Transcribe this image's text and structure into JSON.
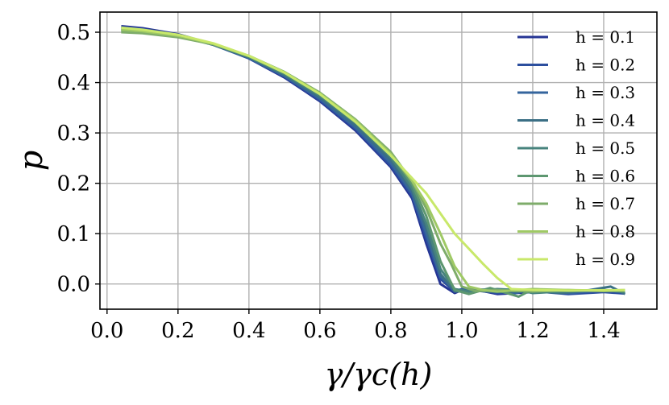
{
  "chart_data": {
    "type": "line",
    "xlabel": "γ/γc(h)",
    "ylabel": "p",
    "xlim": [
      -0.02,
      1.55
    ],
    "ylim": [
      -0.05,
      0.54
    ],
    "x_ticks": [
      "0.0",
      "0.2",
      "0.4",
      "0.6",
      "0.8",
      "1.0",
      "1.2",
      "1.4"
    ],
    "x_tick_values": [
      0.0,
      0.2,
      0.4,
      0.6,
      0.8,
      1.0,
      1.2,
      1.4
    ],
    "y_ticks": [
      "0.0",
      "0.1",
      "0.2",
      "0.3",
      "0.4",
      "0.5"
    ],
    "y_tick_values": [
      0.0,
      0.1,
      0.2,
      0.3,
      0.4,
      0.5
    ],
    "grid": true,
    "legend_position": "top-right",
    "series": [
      {
        "name": "h = 0.1",
        "color": "#253494",
        "points": [
          [
            0.04,
            0.512
          ],
          [
            0.1,
            0.508
          ],
          [
            0.2,
            0.496
          ],
          [
            0.3,
            0.476
          ],
          [
            0.4,
            0.448
          ],
          [
            0.5,
            0.41
          ],
          [
            0.6,
            0.363
          ],
          [
            0.7,
            0.305
          ],
          [
            0.8,
            0.232
          ],
          [
            0.86,
            0.17
          ],
          [
            0.9,
            0.08
          ],
          [
            0.94,
            0.0
          ],
          [
            0.98,
            -0.018
          ],
          [
            1.0,
            -0.012
          ],
          [
            1.06,
            -0.014
          ],
          [
            1.1,
            -0.02
          ],
          [
            1.2,
            -0.016
          ],
          [
            1.3,
            -0.017
          ],
          [
            1.4,
            -0.015
          ],
          [
            1.46,
            -0.018
          ]
        ]
      },
      {
        "name": "h = 0.2",
        "color": "#2c4f9e",
        "points": [
          [
            0.04,
            0.51
          ],
          [
            0.1,
            0.506
          ],
          [
            0.2,
            0.495
          ],
          [
            0.3,
            0.475
          ],
          [
            0.4,
            0.448
          ],
          [
            0.5,
            0.412
          ],
          [
            0.6,
            0.365
          ],
          [
            0.7,
            0.308
          ],
          [
            0.8,
            0.235
          ],
          [
            0.86,
            0.175
          ],
          [
            0.9,
            0.09
          ],
          [
            0.94,
            0.01
          ],
          [
            0.98,
            -0.015
          ],
          [
            1.0,
            -0.01
          ],
          [
            1.08,
            -0.016
          ],
          [
            1.1,
            -0.018
          ],
          [
            1.2,
            -0.014
          ],
          [
            1.3,
            -0.02
          ],
          [
            1.4,
            -0.016
          ],
          [
            1.46,
            -0.019
          ]
        ]
      },
      {
        "name": "h = 0.3",
        "color": "#35659d",
        "points": [
          [
            0.04,
            0.508
          ],
          [
            0.1,
            0.505
          ],
          [
            0.2,
            0.494
          ],
          [
            0.3,
            0.475
          ],
          [
            0.4,
            0.449
          ],
          [
            0.5,
            0.413
          ],
          [
            0.6,
            0.368
          ],
          [
            0.7,
            0.311
          ],
          [
            0.8,
            0.24
          ],
          [
            0.86,
            0.18
          ],
          [
            0.9,
            0.1
          ],
          [
            0.94,
            0.015
          ],
          [
            0.98,
            -0.012
          ],
          [
            1.02,
            -0.01
          ],
          [
            1.1,
            -0.012
          ],
          [
            1.14,
            -0.02
          ],
          [
            1.2,
            -0.01
          ],
          [
            1.3,
            -0.018
          ],
          [
            1.4,
            -0.012
          ],
          [
            1.46,
            -0.016
          ]
        ]
      },
      {
        "name": "h = 0.4",
        "color": "#3b6f85",
        "points": [
          [
            0.04,
            0.506
          ],
          [
            0.1,
            0.503
          ],
          [
            0.2,
            0.493
          ],
          [
            0.3,
            0.475
          ],
          [
            0.4,
            0.45
          ],
          [
            0.5,
            0.415
          ],
          [
            0.6,
            0.371
          ],
          [
            0.7,
            0.315
          ],
          [
            0.8,
            0.246
          ],
          [
            0.86,
            0.185
          ],
          [
            0.9,
            0.11
          ],
          [
            0.94,
            0.02
          ],
          [
            0.98,
            -0.015
          ],
          [
            1.04,
            -0.013
          ],
          [
            1.1,
            -0.016
          ],
          [
            1.2,
            -0.014
          ],
          [
            1.28,
            -0.018
          ],
          [
            1.36,
            -0.012
          ],
          [
            1.42,
            -0.005
          ],
          [
            1.46,
            -0.02
          ]
        ]
      },
      {
        "name": "h = 0.5",
        "color": "#47837d",
        "points": [
          [
            0.04,
            0.504
          ],
          [
            0.1,
            0.502
          ],
          [
            0.2,
            0.492
          ],
          [
            0.3,
            0.476
          ],
          [
            0.4,
            0.451
          ],
          [
            0.5,
            0.417
          ],
          [
            0.6,
            0.374
          ],
          [
            0.7,
            0.32
          ],
          [
            0.8,
            0.252
          ],
          [
            0.86,
            0.19
          ],
          [
            0.9,
            0.12
          ],
          [
            0.94,
            0.03
          ],
          [
            0.98,
            -0.01
          ],
          [
            1.02,
            -0.015
          ],
          [
            1.1,
            -0.01
          ],
          [
            1.16,
            -0.012
          ],
          [
            1.2,
            -0.018
          ],
          [
            1.3,
            -0.014
          ],
          [
            1.4,
            -0.012
          ],
          [
            1.46,
            -0.016
          ]
        ]
      },
      {
        "name": "h = 0.6",
        "color": "#5d9770",
        "points": [
          [
            0.04,
            0.502
          ],
          [
            0.1,
            0.5
          ],
          [
            0.2,
            0.491
          ],
          [
            0.3,
            0.476
          ],
          [
            0.4,
            0.452
          ],
          [
            0.5,
            0.419
          ],
          [
            0.6,
            0.377
          ],
          [
            0.7,
            0.324
          ],
          [
            0.8,
            0.258
          ],
          [
            0.86,
            0.198
          ],
          [
            0.9,
            0.135
          ],
          [
            0.94,
            0.045
          ],
          [
            0.98,
            -0.012
          ],
          [
            1.02,
            -0.02
          ],
          [
            1.08,
            -0.008
          ],
          [
            1.16,
            -0.025
          ],
          [
            1.2,
            -0.01
          ],
          [
            1.3,
            -0.014
          ],
          [
            1.4,
            -0.012
          ],
          [
            1.46,
            -0.014
          ]
        ]
      },
      {
        "name": "h = 0.7",
        "color": "#7eac6a",
        "points": [
          [
            0.04,
            0.5
          ],
          [
            0.1,
            0.498
          ],
          [
            0.2,
            0.49
          ],
          [
            0.3,
            0.476
          ],
          [
            0.4,
            0.453
          ],
          [
            0.5,
            0.421
          ],
          [
            0.6,
            0.38
          ],
          [
            0.7,
            0.327
          ],
          [
            0.8,
            0.262
          ],
          [
            0.86,
            0.204
          ],
          [
            0.9,
            0.15
          ],
          [
            0.94,
            0.08
          ],
          [
            0.97,
            0.04
          ],
          [
            1.0,
            -0.005
          ],
          [
            1.04,
            -0.014
          ],
          [
            1.1,
            -0.012
          ],
          [
            1.2,
            -0.015
          ],
          [
            1.3,
            -0.012
          ],
          [
            1.4,
            -0.014
          ],
          [
            1.46,
            -0.013
          ]
        ]
      },
      {
        "name": "h = 0.8",
        "color": "#9fc965",
        "points": [
          [
            0.04,
            0.505
          ],
          [
            0.1,
            0.502
          ],
          [
            0.2,
            0.493
          ],
          [
            0.3,
            0.477
          ],
          [
            0.4,
            0.453
          ],
          [
            0.5,
            0.42
          ],
          [
            0.6,
            0.378
          ],
          [
            0.7,
            0.325
          ],
          [
            0.8,
            0.258
          ],
          [
            0.86,
            0.205
          ],
          [
            0.9,
            0.16
          ],
          [
            0.94,
            0.1
          ],
          [
            0.98,
            0.035
          ],
          [
            1.02,
            -0.005
          ],
          [
            1.06,
            -0.012
          ],
          [
            1.1,
            -0.015
          ],
          [
            1.2,
            -0.01
          ],
          [
            1.3,
            -0.012
          ],
          [
            1.4,
            -0.013
          ],
          [
            1.46,
            -0.012
          ]
        ]
      },
      {
        "name": "h = 0.9",
        "color": "#c8e86a",
        "points": [
          [
            0.04,
            0.509
          ],
          [
            0.1,
            0.505
          ],
          [
            0.2,
            0.495
          ],
          [
            0.3,
            0.478
          ],
          [
            0.4,
            0.453
          ],
          [
            0.5,
            0.42
          ],
          [
            0.6,
            0.377
          ],
          [
            0.7,
            0.322
          ],
          [
            0.8,
            0.255
          ],
          [
            0.86,
            0.21
          ],
          [
            0.9,
            0.18
          ],
          [
            0.94,
            0.14
          ],
          [
            0.98,
            0.1
          ],
          [
            1.02,
            0.07
          ],
          [
            1.06,
            0.04
          ],
          [
            1.1,
            0.012
          ],
          [
            1.14,
            -0.01
          ],
          [
            1.2,
            -0.012
          ],
          [
            1.3,
            -0.013
          ],
          [
            1.46,
            -0.012
          ]
        ]
      }
    ]
  }
}
